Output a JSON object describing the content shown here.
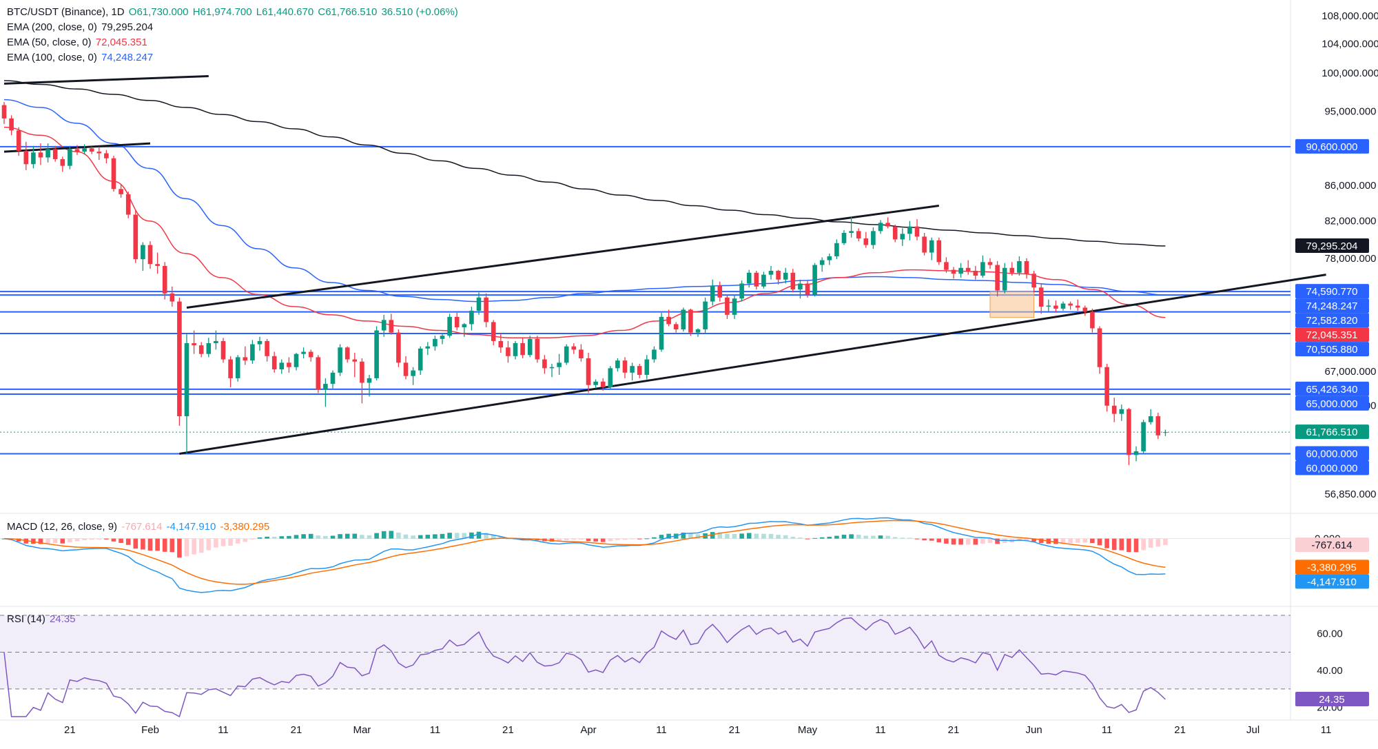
{
  "header": {
    "symbol": "BTC/USDT (Binance), 1D",
    "open": "O61,730.000",
    "high": "H61,974.700",
    "low": "L61,440.670",
    "close": "C61,766.510",
    "change": "36.510 (+0.06%)"
  },
  "indicators": {
    "ema200": {
      "label": "EMA (200, close, 0)",
      "value": "79,295.204",
      "color": "#131722"
    },
    "ema50": {
      "label": "EMA (50, close, 0)",
      "value": "72,045.351",
      "color": "#f23645"
    },
    "ema100": {
      "label": "EMA (100, close, 0)",
      "value": "74,248.247",
      "color": "#2962ff"
    },
    "macd": {
      "label": "MACD (12, 26, close, 9)",
      "hist": "-767.614",
      "macd": "-4,147.910",
      "signal": "-3,380.295"
    },
    "rsi": {
      "label": "RSI (14)",
      "value": "24.35"
    }
  },
  "price_axis": {
    "ticks": [
      "108,000.000",
      "104,000.000",
      "100,000.000",
      "95,000.000",
      "90,600.000",
      "86,000.000",
      "82,000.000",
      "79,295.204",
      "78,000.000",
      "74,590.770",
      "74,248.247",
      "72,582.820",
      "72,045.351",
      "70,505.880",
      "67,000.000",
      "65,426.340",
      "65,000.000",
      "64,000.000",
      "61,766.510",
      "60,000.000",
      "60,000.000",
      "56,850.000"
    ]
  },
  "price_labels": [
    {
      "text": "90,600.000",
      "bg": "#2962ff",
      "fg": "#ffffff",
      "price": 90600
    },
    {
      "text": "79,295.204",
      "bg": "#131722",
      "fg": "#ffffff",
      "price": 79295.204
    },
    {
      "text": "74,590.770",
      "bg": "#2962ff",
      "fg": "#ffffff",
      "price": 74590.77
    },
    {
      "text": "74,248.247",
      "bg": "#2962ff",
      "fg": "#ffffff",
      "price": 74248.247
    },
    {
      "text": "72,582.820",
      "bg": "#2962ff",
      "fg": "#ffffff",
      "price": 72582.82
    },
    {
      "text": "72,045.351",
      "bg": "#f23645",
      "fg": "#ffffff",
      "price": 72045.351
    },
    {
      "text": "70,505.880",
      "bg": "#2962ff",
      "fg": "#ffffff",
      "price": 70505.88
    },
    {
      "text": "65,426.340",
      "bg": "#2962ff",
      "fg": "#ffffff",
      "price": 65426.34
    },
    {
      "text": "65,000.000",
      "bg": "#2962ff",
      "fg": "#ffffff",
      "price": 65000
    },
    {
      "text": "61,766.510",
      "bg": "#089981",
      "fg": "#ffffff",
      "price": 61766.51
    },
    {
      "text": "60,000.000",
      "bg": "#2962ff",
      "fg": "#ffffff",
      "price": 60000
    },
    {
      "text": "60,000.000",
      "bg": "#2962ff",
      "fg": "#ffffff",
      "price": 59999
    }
  ],
  "plain_ticks": [
    {
      "text": "108,000.000",
      "price": 108000
    },
    {
      "text": "104,000.000",
      "price": 104000
    },
    {
      "text": "100,000.000",
      "price": 100000
    },
    {
      "text": "95,000.000",
      "price": 95000
    },
    {
      "text": "86,000.000",
      "price": 86000
    },
    {
      "text": "82,000.000",
      "price": 82000
    },
    {
      "text": "78,000.000",
      "price": 78000
    },
    {
      "text": "67,000.000",
      "price": 67000
    },
    {
      "text": "64,000.000",
      "price": 64000
    },
    {
      "text": "56,850.000",
      "price": 56850
    }
  ],
  "macd_axis": {
    "zero_label": "0.000",
    "labels": [
      {
        "text": "-767.614",
        "bg": "#fbd0d4",
        "fg": "#131722",
        "value": -767.614
      },
      {
        "text": "-3,380.295",
        "bg": "#ff6d00",
        "fg": "#ffffff",
        "value": -3380.295
      },
      {
        "text": "-4,147.910",
        "bg": "#2196f3",
        "fg": "#ffffff",
        "value": -4147.91
      }
    ]
  },
  "rsi_axis": {
    "ticks": [
      "60.00",
      "40.00",
      "20.00"
    ],
    "label": {
      "text": "24.35",
      "bg": "#7e57c2",
      "fg": "#ffffff",
      "value": 24.35
    }
  },
  "x_axis": {
    "labels": [
      "21",
      "Feb",
      "11",
      "21",
      "Mar",
      "11",
      "21",
      "Apr",
      "11",
      "21",
      "May",
      "11",
      "21",
      "Jun",
      "11",
      "21",
      "Jul",
      "11"
    ]
  },
  "colors": {
    "up": "#089981",
    "down": "#f23645",
    "ema200": "#131722",
    "ema50": "#f23645",
    "ema100": "#2962ff",
    "hline": "#2962ff",
    "trend": "#131722",
    "rsi": "#7e57c2",
    "macd": "#2196f3",
    "signal": "#ff6d00",
    "box": "#f7c38c"
  },
  "chart_data": {
    "type": "candlestick",
    "title": "BTC/USDT (Binance), 1D",
    "ylim": [
      55800,
      109500
    ],
    "x_start": "2024-01-12",
    "candles": [
      [
        95800,
        96200,
        93400,
        94100
      ],
      [
        94100,
        94500,
        92000,
        92600
      ],
      [
        92600,
        93000,
        89500,
        90100
      ],
      [
        90100,
        91200,
        87800,
        88500
      ],
      [
        88500,
        90700,
        88000,
        89900
      ],
      [
        89900,
        91000,
        88400,
        89300
      ],
      [
        89300,
        91000,
        88700,
        90300
      ],
      [
        90300,
        90700,
        88800,
        89100
      ],
      [
        89100,
        89400,
        87600,
        88300
      ],
      [
        88300,
        90700,
        87900,
        90300
      ],
      [
        90300,
        90800,
        89600,
        90000
      ],
      [
        90000,
        90900,
        89700,
        90400
      ],
      [
        90400,
        90600,
        89700,
        90000
      ],
      [
        90000,
        90600,
        89000,
        89800
      ],
      [
        89800,
        90200,
        88600,
        89200
      ],
      [
        89200,
        89500,
        85300,
        85600
      ],
      [
        85600,
        86100,
        84600,
        85000
      ],
      [
        85000,
        85300,
        82300,
        82700
      ],
      [
        82700,
        83200,
        77500,
        77900
      ],
      [
        77900,
        79700,
        76700,
        79400
      ],
      [
        79400,
        79800,
        76900,
        77400
      ],
      [
        77400,
        78600,
        76400,
        77200
      ],
      [
        77200,
        77600,
        73800,
        74400
      ],
      [
        74400,
        75100,
        73100,
        73600
      ],
      [
        73600,
        74000,
        62300,
        63100
      ],
      [
        63100,
        70500,
        60000,
        69600
      ],
      [
        69600,
        70800,
        68600,
        69400
      ],
      [
        69400,
        69700,
        68300,
        68600
      ],
      [
        68600,
        70100,
        68300,
        69600
      ],
      [
        69600,
        70800,
        69000,
        69800
      ],
      [
        69800,
        70100,
        67800,
        68100
      ],
      [
        68100,
        68400,
        65600,
        66400
      ],
      [
        66400,
        68500,
        66100,
        68300
      ],
      [
        68300,
        69300,
        67600,
        68000
      ],
      [
        68000,
        69900,
        67700,
        69500
      ],
      [
        69500,
        70200,
        68900,
        69800
      ],
      [
        69800,
        70000,
        67900,
        68400
      ],
      [
        68400,
        68800,
        66900,
        67200
      ],
      [
        67200,
        68100,
        66800,
        67800
      ],
      [
        67800,
        68300,
        66900,
        67400
      ],
      [
        67400,
        68700,
        67100,
        68600
      ],
      [
        68600,
        69200,
        68200,
        68800
      ],
      [
        68800,
        69000,
        67900,
        68300
      ],
      [
        68300,
        68500,
        65100,
        65400
      ],
      [
        65400,
        66400,
        63900,
        65900
      ],
      [
        65900,
        67100,
        65500,
        66900
      ],
      [
        66900,
        69500,
        66600,
        69200
      ],
      [
        69200,
        69300,
        67800,
        68100
      ],
      [
        68100,
        68700,
        66500,
        67900
      ],
      [
        67900,
        68200,
        64200,
        66000
      ],
      [
        66000,
        66700,
        64800,
        66400
      ],
      [
        66400,
        71200,
        66200,
        70800
      ],
      [
        70800,
        72300,
        70200,
        71800
      ],
      [
        71800,
        72400,
        70400,
        70600
      ],
      [
        70600,
        70900,
        67400,
        67800
      ],
      [
        67800,
        68400,
        66300,
        66600
      ],
      [
        66600,
        67400,
        65800,
        67100
      ],
      [
        67100,
        69300,
        66700,
        69100
      ],
      [
        69100,
        69700,
        68500,
        69300
      ],
      [
        69300,
        70300,
        68900,
        70000
      ],
      [
        70000,
        70500,
        69500,
        70300
      ],
      [
        70300,
        72400,
        70100,
        72100
      ],
      [
        72100,
        72500,
        70800,
        71100
      ],
      [
        71100,
        71500,
        70200,
        71400
      ],
      [
        71400,
        73100,
        70800,
        72700
      ],
      [
        72700,
        74500,
        72300,
        74000
      ],
      [
        74000,
        74400,
        71100,
        71600
      ],
      [
        71600,
        71800,
        69400,
        69800
      ],
      [
        69800,
        70500,
        68700,
        69200
      ],
      [
        69200,
        69800,
        67800,
        68400
      ],
      [
        68400,
        69800,
        68100,
        69600
      ],
      [
        69600,
        70100,
        68200,
        68500
      ],
      [
        68500,
        70300,
        68300,
        70000
      ],
      [
        70000,
        70300,
        67800,
        68100
      ],
      [
        68100,
        68500,
        66800,
        67300
      ],
      [
        67300,
        67700,
        66500,
        67400
      ],
      [
        67400,
        68600,
        66700,
        67800
      ],
      [
        67800,
        69500,
        67600,
        69300
      ],
      [
        69300,
        69600,
        68600,
        69000
      ],
      [
        69000,
        69500,
        67900,
        68200
      ],
      [
        68200,
        68700,
        65100,
        65800
      ],
      [
        65800,
        66300,
        65500,
        66100
      ],
      [
        66100,
        66400,
        65300,
        65600
      ],
      [
        65600,
        67500,
        65400,
        67300
      ],
      [
        67300,
        68200,
        67000,
        68000
      ],
      [
        68000,
        68300,
        66400,
        66900
      ],
      [
        66900,
        67800,
        66200,
        67500
      ],
      [
        67500,
        67700,
        66400,
        66700
      ],
      [
        66700,
        68500,
        66300,
        68100
      ],
      [
        68100,
        69300,
        67800,
        69000
      ],
      [
        69000,
        72500,
        68800,
        72100
      ],
      [
        72100,
        72800,
        71200,
        71400
      ],
      [
        71400,
        71600,
        70600,
        70900
      ],
      [
        70900,
        73000,
        70700,
        72800
      ],
      [
        72800,
        72900,
        70300,
        70600
      ],
      [
        70600,
        71000,
        70200,
        70900
      ],
      [
        70900,
        74000,
        70500,
        73600
      ],
      [
        73600,
        75800,
        73200,
        75200
      ],
      [
        75200,
        75600,
        73600,
        74000
      ],
      [
        74000,
        74300,
        71900,
        72300
      ],
      [
        72300,
        74200,
        71900,
        73900
      ],
      [
        73900,
        75700,
        73600,
        75400
      ],
      [
        75400,
        76800,
        75000,
        76500
      ],
      [
        76500,
        76700,
        74800,
        75100
      ],
      [
        75100,
        76600,
        74900,
        76300
      ],
      [
        76300,
        77200,
        75800,
        76700
      ],
      [
        76700,
        76800,
        75300,
        75800
      ],
      [
        75800,
        77000,
        75400,
        76500
      ],
      [
        76500,
        76900,
        74500,
        74800
      ],
      [
        74800,
        75800,
        73900,
        75400
      ],
      [
        75400,
        75700,
        74000,
        74300
      ],
      [
        74300,
        77500,
        74100,
        77300
      ],
      [
        77300,
        78100,
        76600,
        77800
      ],
      [
        77800,
        78500,
        77300,
        78200
      ],
      [
        78200,
        80000,
        77900,
        79600
      ],
      [
        79600,
        81000,
        79400,
        80700
      ],
      [
        80700,
        82500,
        80200,
        80900
      ],
      [
        80900,
        81200,
        79800,
        80100
      ],
      [
        80100,
        80800,
        79100,
        79400
      ],
      [
        79400,
        81300,
        79000,
        80900
      ],
      [
        80900,
        82100,
        80600,
        81800
      ],
      [
        81800,
        82400,
        81200,
        81400
      ],
      [
        81400,
        81600,
        79700,
        80000
      ],
      [
        80000,
        81200,
        79300,
        80600
      ],
      [
        80600,
        82000,
        79900,
        81400
      ],
      [
        81400,
        82200,
        79900,
        80300
      ],
      [
        80300,
        80700,
        78300,
        78600
      ],
      [
        78600,
        80200,
        77800,
        79900
      ],
      [
        79900,
        80200,
        77300,
        77600
      ],
      [
        77600,
        78100,
        76500,
        76800
      ],
      [
        76800,
        77100,
        75900,
        76400
      ],
      [
        76400,
        77500,
        76000,
        77000
      ],
      [
        77000,
        77800,
        76300,
        76700
      ],
      [
        76700,
        77200,
        75800,
        76200
      ],
      [
        76200,
        78300,
        76000,
        77600
      ],
      [
        77600,
        78000,
        76900,
        77300
      ],
      [
        77300,
        77700,
        74100,
        74700
      ],
      [
        74700,
        77500,
        74400,
        77000
      ],
      [
        77000,
        77600,
        76200,
        76500
      ],
      [
        76500,
        78200,
        76200,
        77700
      ],
      [
        77700,
        78000,
        75900,
        76400
      ],
      [
        76400,
        76700,
        74500,
        75000
      ],
      [
        75000,
        75400,
        72400,
        73100
      ],
      [
        73100,
        73800,
        72600,
        73200
      ],
      [
        73200,
        73700,
        72500,
        72900
      ],
      [
        72900,
        73600,
        72700,
        73400
      ],
      [
        73400,
        73600,
        72800,
        73200
      ],
      [
        73200,
        73800,
        72700,
        73000
      ],
      [
        73000,
        73200,
        72200,
        72600
      ],
      [
        72600,
        72900,
        70600,
        71000
      ],
      [
        71000,
        71200,
        66800,
        67400
      ],
      [
        67400,
        67700,
        63500,
        64000
      ],
      [
        64000,
        64700,
        62600,
        63300
      ],
      [
        63300,
        64100,
        62700,
        63700
      ],
      [
        63700,
        63800,
        59100,
        59900
      ],
      [
        59900,
        60600,
        59400,
        60200
      ],
      [
        60200,
        62800,
        60000,
        62600
      ],
      [
        62600,
        63700,
        62400,
        63100
      ],
      [
        63100,
        63400,
        61200,
        61500
      ],
      [
        61730,
        61974.7,
        61440.67,
        61766.51
      ]
    ],
    "ema200": {
      "values": [
        99000,
        98500,
        97900,
        97200,
        96400,
        95500,
        94600,
        93700,
        92800,
        91800,
        90800,
        89800,
        88900,
        88000,
        87200,
        86400,
        85600,
        84900,
        84300,
        83700,
        83200,
        82700,
        82300,
        81900,
        81600,
        81300,
        81000,
        80700,
        80400,
        80100,
        79800,
        79500,
        79295.204
      ]
    },
    "ema100": {
      "values": [
        96500,
        95500,
        93500,
        91000,
        88000,
        84500,
        81500,
        79000,
        77000,
        75500,
        74700,
        74100,
        73800,
        73600,
        73700,
        74000,
        74400,
        74700,
        74900,
        75100,
        75200,
        75400,
        75700,
        76000,
        76100,
        76000,
        75800,
        75700,
        75500,
        75300,
        75000,
        74600,
        74248.247
      ]
    },
    "ema50": {
      "values": [
        93000,
        92000,
        90000,
        86500,
        82000,
        78500,
        76000,
        74300,
        73100,
        72300,
        71700,
        71200,
        70800,
        70400,
        70100,
        70100,
        70300,
        70800,
        71700,
        72600,
        73500,
        74400,
        75300,
        76000,
        76500,
        76800,
        76700,
        76600,
        76400,
        75800,
        74800,
        73300,
        72045.351
      ]
    },
    "hlines": [
      90600,
      74590.77,
      74248.247,
      72582.82,
      70505.88,
      65426.34,
      65000,
      60000
    ],
    "trendlines": [
      {
        "from": [
          "2024-01-12",
          98600
        ],
        "to": [
          "2024-02-09",
          99600
        ]
      },
      {
        "from": [
          "2024-01-12",
          90000
        ],
        "to": [
          "2024-02-01",
          91000
        ]
      },
      {
        "from": [
          "2024-02-06",
          73000
        ],
        "to": [
          "2024-05-19",
          83700
        ]
      },
      {
        "from": [
          "2024-02-05",
          60000
        ],
        "to": [
          "2024-07-11",
          76300
        ]
      }
    ],
    "box": {
      "from": "2024-05-26",
      "to": "2024-06-01",
      "low": 72045,
      "high": 74590
    },
    "macd_ylim": [
      -7000,
      2000
    ],
    "rsi_ylim": [
      15,
      73
    ],
    "rsi_levels": [
      70,
      50,
      30
    ]
  }
}
